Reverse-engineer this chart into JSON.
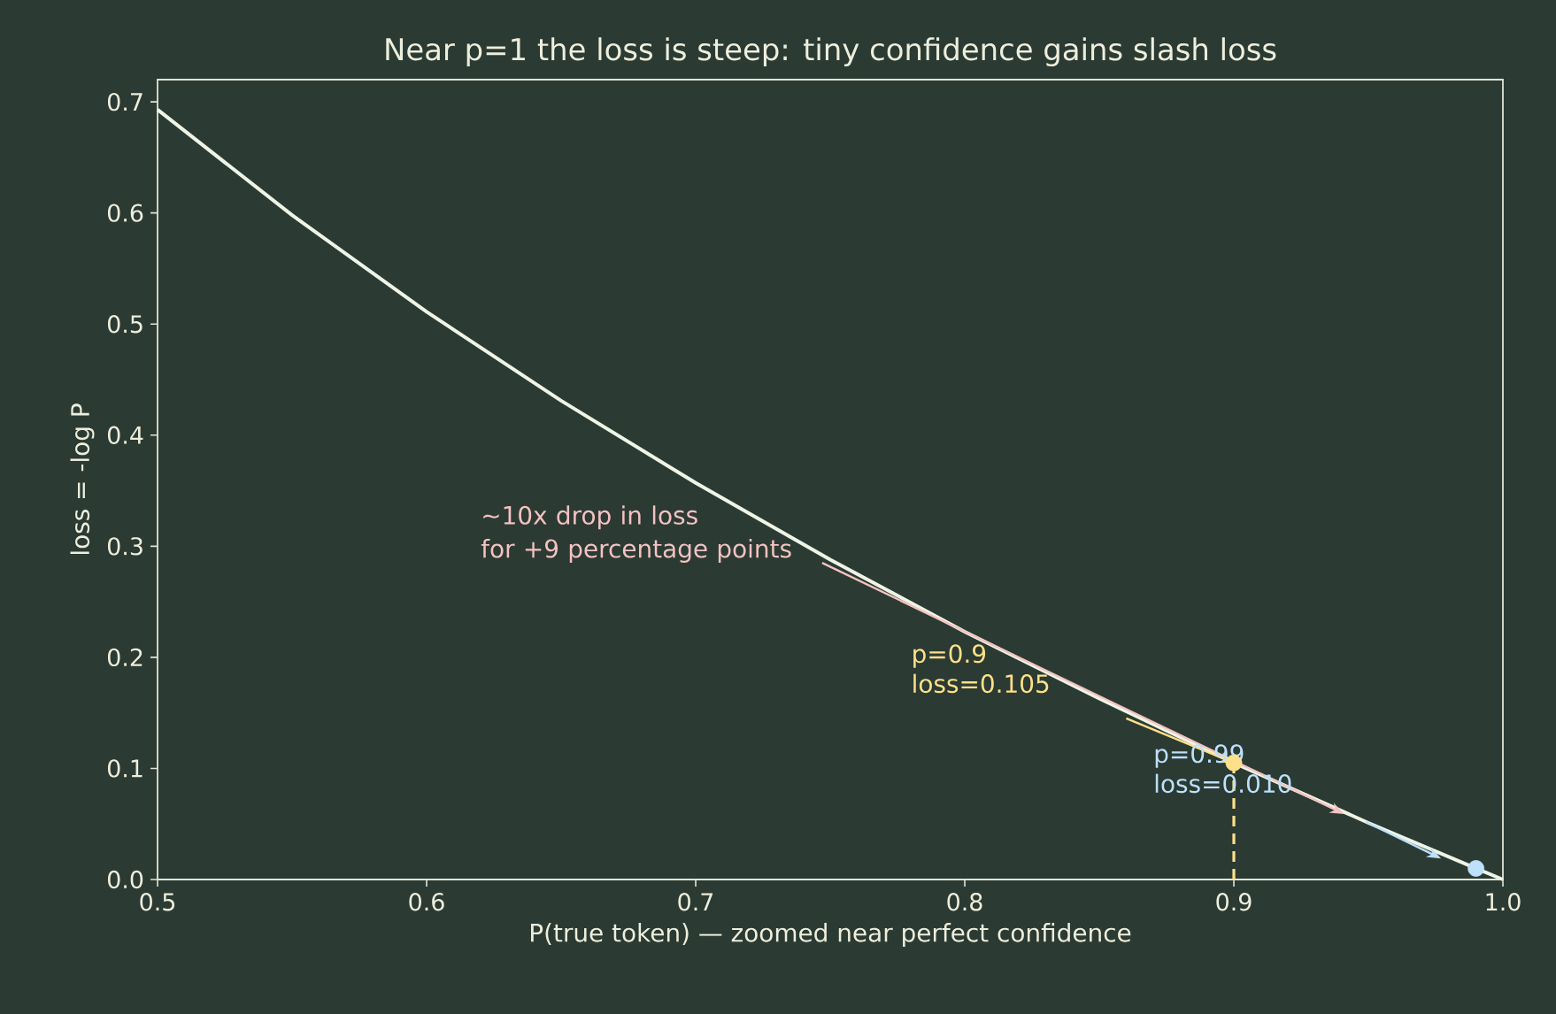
{
  "chart_data": {
    "type": "line",
    "title": "Near p=1 the loss is steep: tiny confidence gains slash loss",
    "xlabel": "P(true token)  — zoomed near perfect confidence",
    "ylabel": "loss  =  -log P",
    "x": [
      0.5,
      0.55,
      0.6,
      0.65,
      0.7,
      0.75,
      0.8,
      0.85,
      0.9,
      0.95,
      0.99,
      1.0
    ],
    "series": [
      {
        "color": "#eef5e6",
        "marker": "none",
        "values": [
          0.693,
          0.598,
          0.511,
          0.431,
          0.357,
          0.288,
          0.223,
          0.163,
          0.105,
          0.051,
          0.01,
          0.0
        ]
      },
      {
        "type": "lollipop",
        "color": "#ffe08a",
        "marker": "circle",
        "line_style": "dashed",
        "values": [
          null,
          null,
          null,
          null,
          null,
          null,
          null,
          null,
          0.105,
          null,
          null,
          null
        ]
      },
      {
        "type": "scatter",
        "color": "#bde0fb",
        "marker": "circle",
        "values": [
          null,
          null,
          null,
          null,
          null,
          null,
          null,
          null,
          null,
          null,
          0.01,
          null
        ]
      }
    ],
    "annotations": [
      "~10x drop in loss",
      "for +9 percentage points",
      "p=0.9 loss=0.105",
      "p=0.99 loss=0.010"
    ],
    "xlim": [
      0.5,
      1.0
    ],
    "ylim": [
      0.0,
      0.72
    ],
    "xticks": [
      0.5,
      0.6,
      0.7,
      0.8,
      0.9,
      {
        "value": 1.0,
        "label": "1.0"
      }
    ],
    "yticks": [
      {
        "value": 0.0,
        "label": "0.0"
      },
      0.1,
      0.2,
      0.3,
      0.4,
      0.5,
      0.6,
      0.7
    ],
    "grid": false
  }
}
